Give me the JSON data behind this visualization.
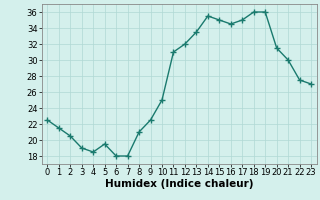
{
  "xlabel": "Humidex (Indice chaleur)",
  "x": [
    0,
    1,
    2,
    3,
    4,
    5,
    6,
    7,
    8,
    9,
    10,
    11,
    12,
    13,
    14,
    15,
    16,
    17,
    18,
    19,
    20,
    21,
    22,
    23
  ],
  "y": [
    22.5,
    21.5,
    20.5,
    19.0,
    18.5,
    19.5,
    18.0,
    18.0,
    21.0,
    22.5,
    25.0,
    31.0,
    32.0,
    33.5,
    35.5,
    35.0,
    34.5,
    35.0,
    36.0,
    36.0,
    31.5,
    30.0,
    27.5,
    27.0
  ],
  "line_color": "#1a7a6e",
  "marker": "+",
  "marker_size": 4,
  "bg_color": "#d4f0ec",
  "grid_color": "#b0d8d4",
  "ylim": [
    17,
    37
  ],
  "yticks": [
    18,
    20,
    22,
    24,
    26,
    28,
    30,
    32,
    34,
    36
  ],
  "xlim": [
    -0.5,
    23.5
  ],
  "tick_fontsize": 6,
  "xlabel_fontsize": 7.5
}
